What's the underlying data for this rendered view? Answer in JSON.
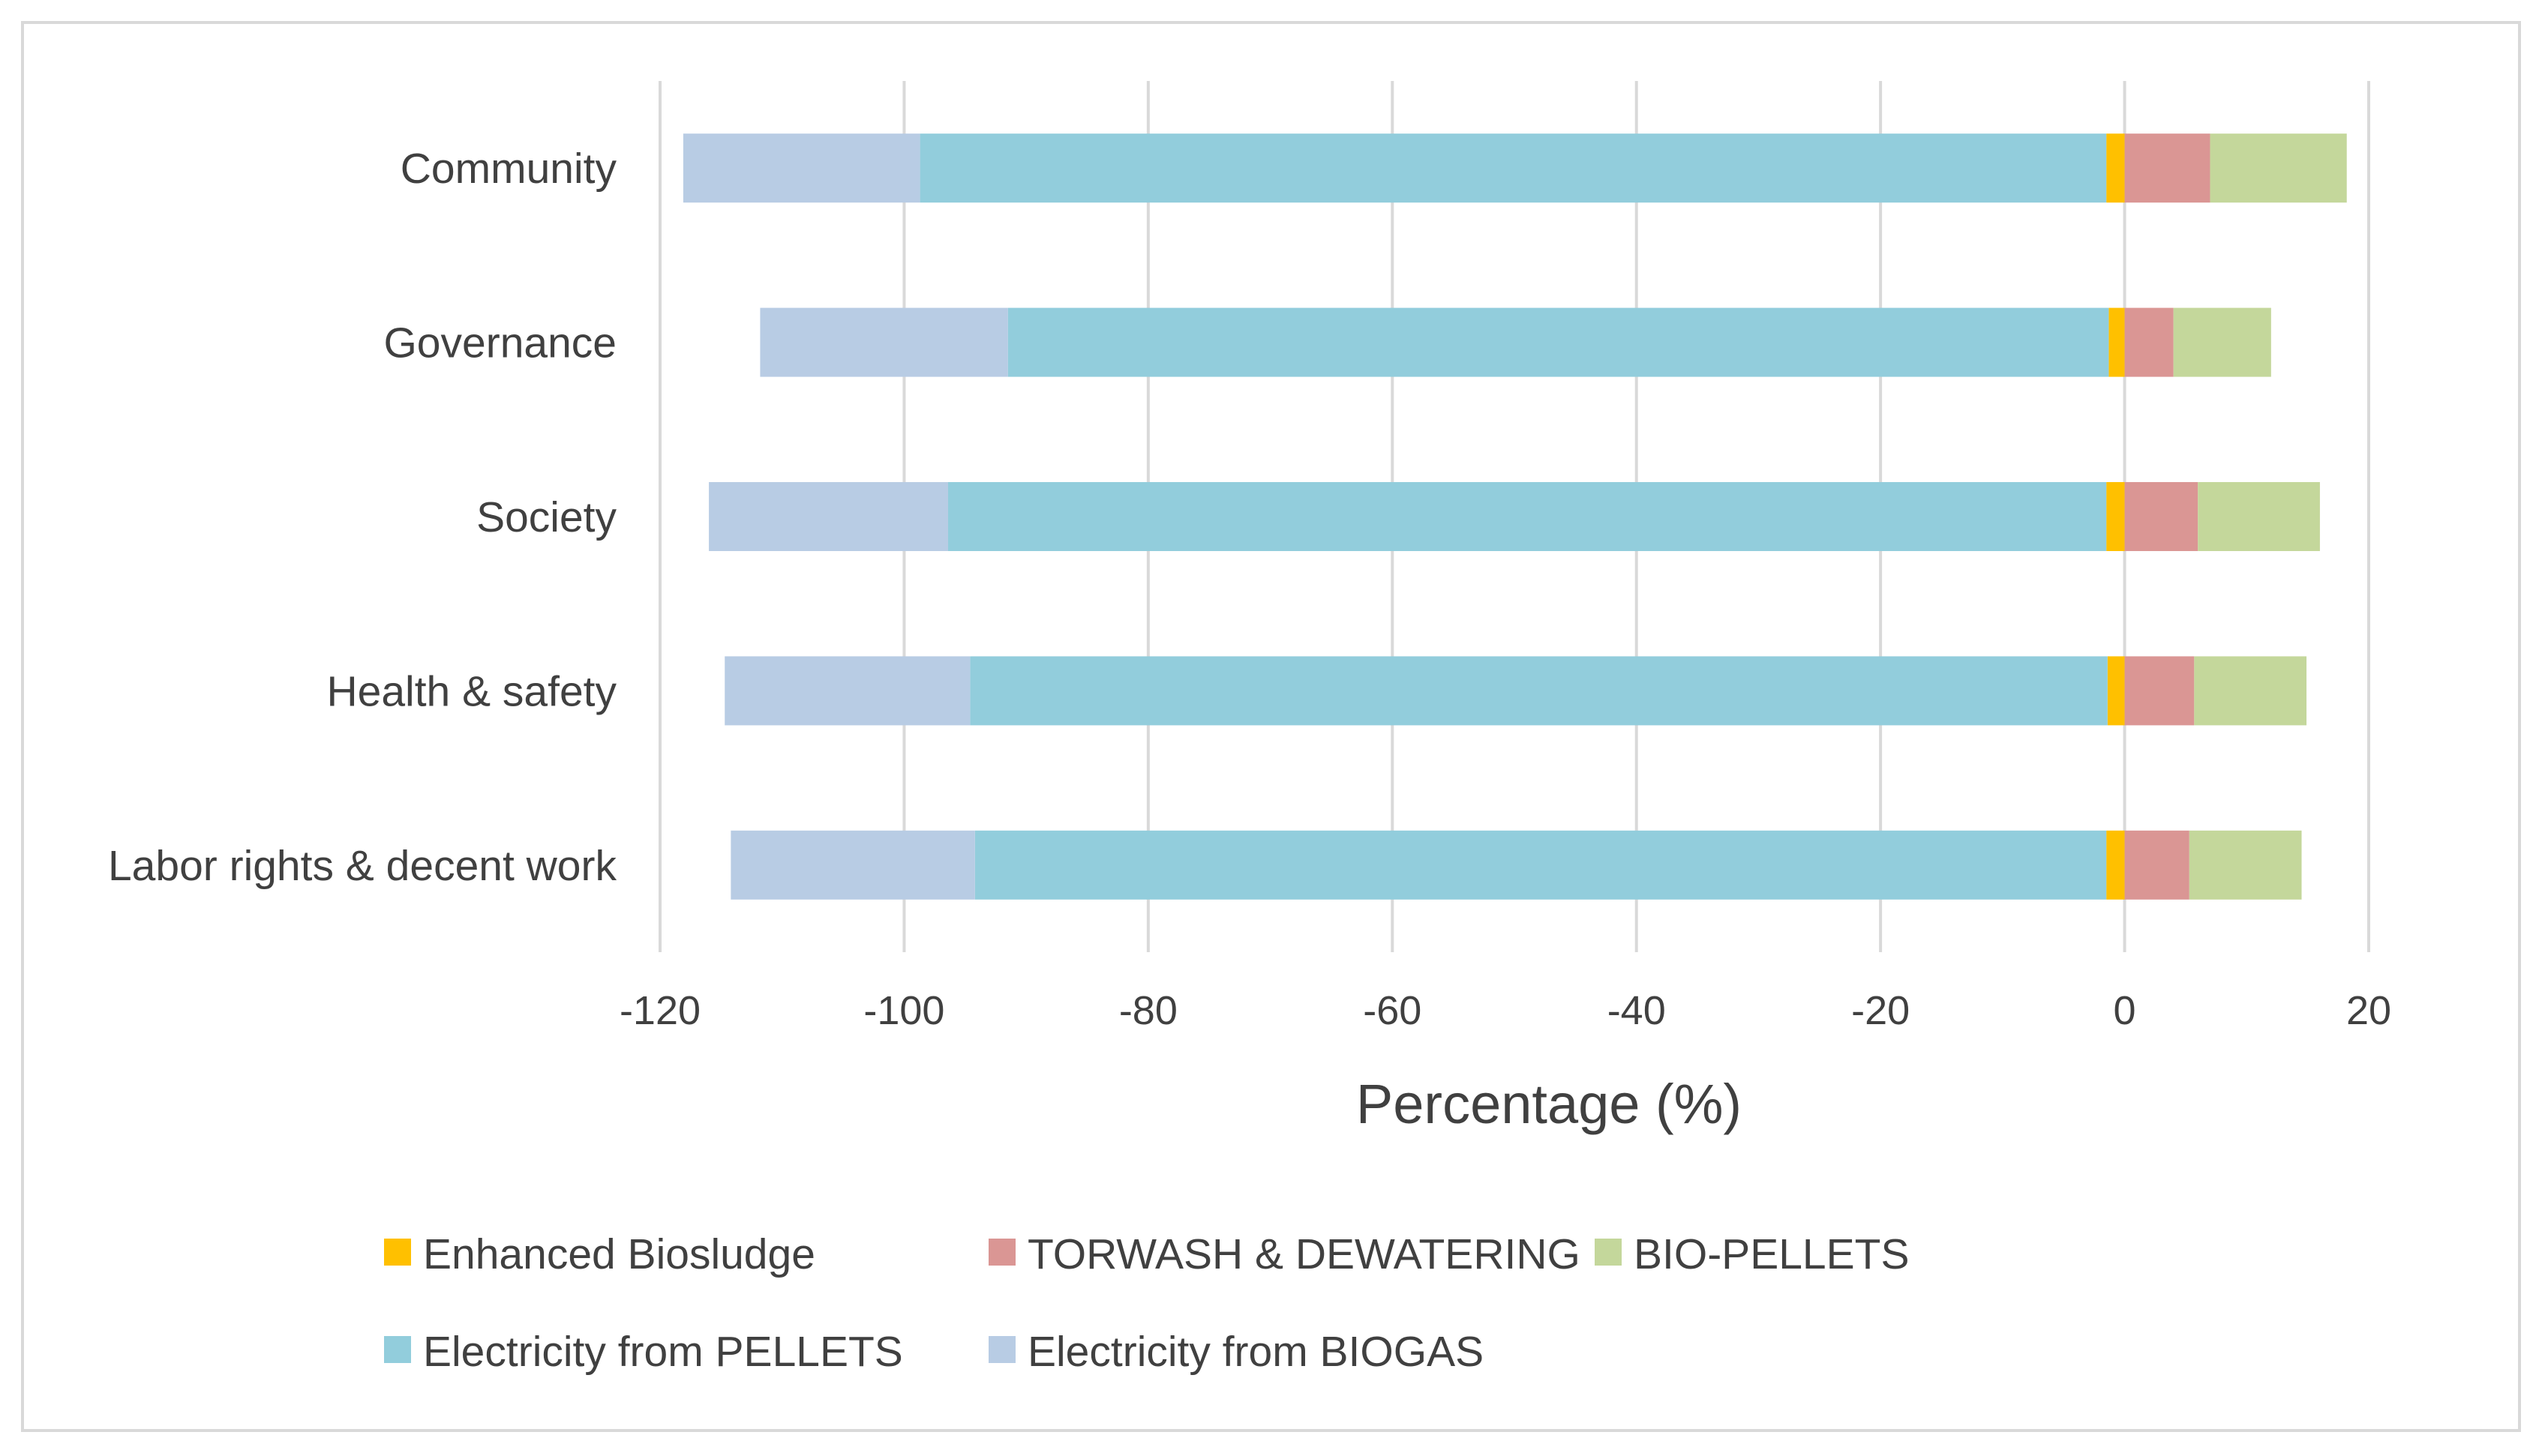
{
  "chart_data": {
    "type": "bar",
    "orientation": "horizontal",
    "stacked": true,
    "categories": [
      "Community",
      "Governance",
      "Society",
      "Health & safety",
      "Labor rights & decent work"
    ],
    "series": [
      {
        "name": "Enhanced Biosludge",
        "color": "#FFC000",
        "values": [
          -1.5,
          -1.3,
          -1.5,
          -1.4,
          -1.5
        ]
      },
      {
        "name": "TORWASH & DEWATERING",
        "color": "#DA9694",
        "values": [
          7.0,
          4.0,
          6.0,
          5.7,
          5.3
        ]
      },
      {
        "name": "BIO-PELLETS",
        "color": "#C4D79B",
        "values": [
          11.2,
          8.0,
          10.0,
          9.2,
          9.2
        ]
      },
      {
        "name": "Electricity from PELLETS",
        "color": "#92CDDC",
        "values": [
          -97.2,
          -90.2,
          -94.9,
          -93.2,
          -92.7
        ]
      },
      {
        "name": "Electricity from BIOGAS",
        "color": "#B8CCE4",
        "values": [
          -19.4,
          -20.3,
          -19.6,
          -20.1,
          -20.0
        ]
      }
    ],
    "xlabel": "Percentage (%)",
    "ylabel": "",
    "xlim": [
      -120,
      20
    ],
    "xticks": [
      -120,
      -100,
      -80,
      -60,
      -40,
      -20,
      0,
      20
    ],
    "grid": true,
    "legend_position": "bottom"
  }
}
